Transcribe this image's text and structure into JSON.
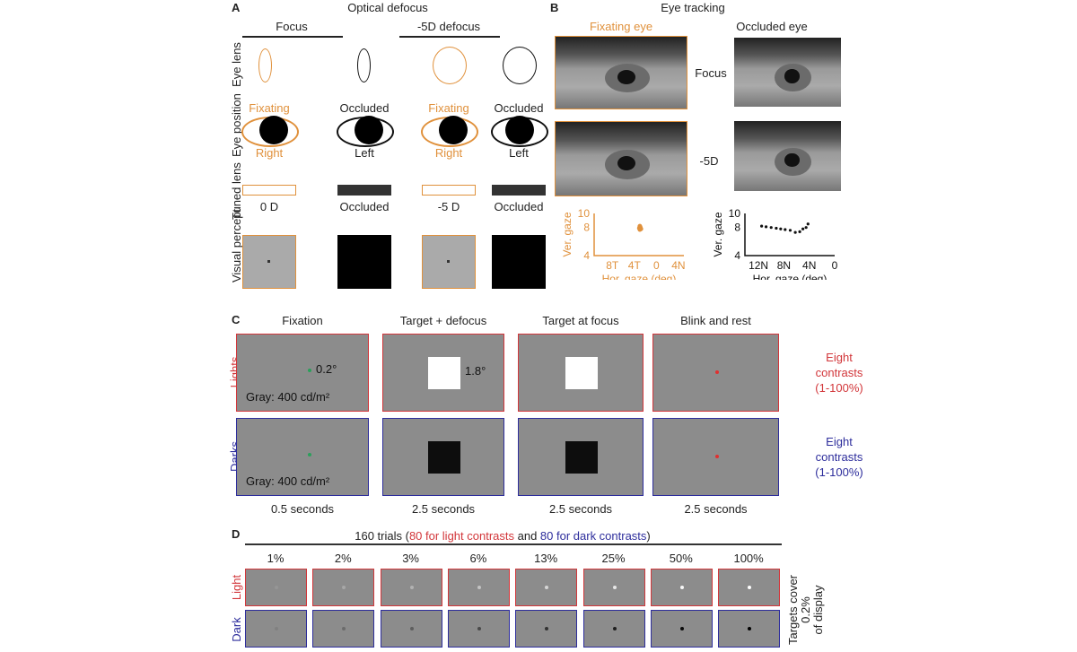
{
  "panel_a": {
    "letter": "A",
    "title": "Optical defocus",
    "columns": [
      "Focus",
      "-5D defocus"
    ],
    "rows": [
      "Eye lens",
      "Eye position",
      "Tuned lens",
      "Visual percept"
    ],
    "eye_position": [
      {
        "top": "Fixating",
        "bottom": "Right",
        "color": "#e0913c"
      },
      {
        "top": "Occluded",
        "bottom": "Left",
        "color": "#111111"
      },
      {
        "top": "Fixating",
        "bottom": "Right",
        "color": "#e0913c"
      },
      {
        "top": "Occluded",
        "bottom": "Left",
        "color": "#111111"
      }
    ],
    "tuned_lens": [
      "0 D",
      "Occluded",
      "-5 D",
      "Occluded"
    ]
  },
  "panel_b": {
    "letter": "B",
    "title": "Eye tracking",
    "fixating_label": "Fixating eye",
    "occluded_label": "Occluded eye",
    "row_labels": [
      "Focus",
      "-5D"
    ]
  },
  "chart_data": [
    {
      "type": "scatter",
      "xlabel": "Hor. gaze (deg)",
      "ylabel": "Ver. gaze",
      "xticks": [
        "8T",
        "4T",
        "0",
        "4N"
      ],
      "yticks": [
        "4",
        "8",
        "10"
      ],
      "ylim": [
        4,
        10
      ],
      "color": "#e0913c",
      "points": [
        [
          -3,
          8.2
        ],
        [
          -3.1,
          7.9
        ],
        [
          -2.9,
          8.0
        ],
        [
          -3.0,
          7.7
        ],
        [
          -2.8,
          7.8
        ]
      ]
    },
    {
      "type": "scatter",
      "xlabel": "Hor. gaze (deg)",
      "ylabel": "Ver. gaze",
      "xticks": [
        "12N",
        "8N",
        "4N",
        "0"
      ],
      "yticks": [
        "4",
        "8",
        "10"
      ],
      "ylim": [
        4,
        10
      ],
      "color": "#111111",
      "points": [
        [
          11.5,
          8.2
        ],
        [
          10.8,
          8.1
        ],
        [
          10,
          8.0
        ],
        [
          9.2,
          7.9
        ],
        [
          8.5,
          7.8
        ],
        [
          7.8,
          7.7
        ],
        [
          7,
          7.6
        ],
        [
          6.2,
          7.3
        ],
        [
          5.5,
          7.4
        ],
        [
          5,
          7.8
        ],
        [
          4.5,
          8.0
        ],
        [
          4.2,
          8.5
        ]
      ]
    }
  ],
  "panel_c": {
    "letter": "C",
    "columns": [
      "Fixation",
      "Target + defocus",
      "Target at focus",
      "Blink and rest"
    ],
    "rows": [
      {
        "label": "Lights",
        "right": [
          "Eight",
          "contrasts",
          "(1-100%)"
        ],
        "color": "#d2363a",
        "target": "#ffffff"
      },
      {
        "label": "Darks",
        "right": [
          "Eight",
          "contrasts",
          "(1-100%)"
        ],
        "color": "#2d2d9c",
        "target": "#0d0d0d"
      }
    ],
    "fixation_size": "0.2°",
    "target_size": "1.8°",
    "gray_label": "Gray: 400 cd/m²",
    "durations": [
      "0.5 seconds",
      "2.5 seconds",
      "2.5 seconds",
      "2.5 seconds"
    ],
    "fixation_color": "#2aa05a",
    "rest_color": "#e03030"
  },
  "panel_d": {
    "letter": "D",
    "title_pre": "160 trials (",
    "title_light": "80 for light contrasts",
    "title_mid": " and ",
    "title_dark": "80 for dark contrasts",
    "title_post": ")",
    "contrasts": [
      "1%",
      "2%",
      "3%",
      "6%",
      "13%",
      "25%",
      "50%",
      "100%"
    ],
    "contrast_values": [
      1,
      2,
      3,
      6,
      13,
      25,
      50,
      100
    ],
    "row_labels": [
      "Light",
      "Dark"
    ],
    "side_note": [
      "Targets cover",
      "0.2%",
      "of display"
    ]
  }
}
